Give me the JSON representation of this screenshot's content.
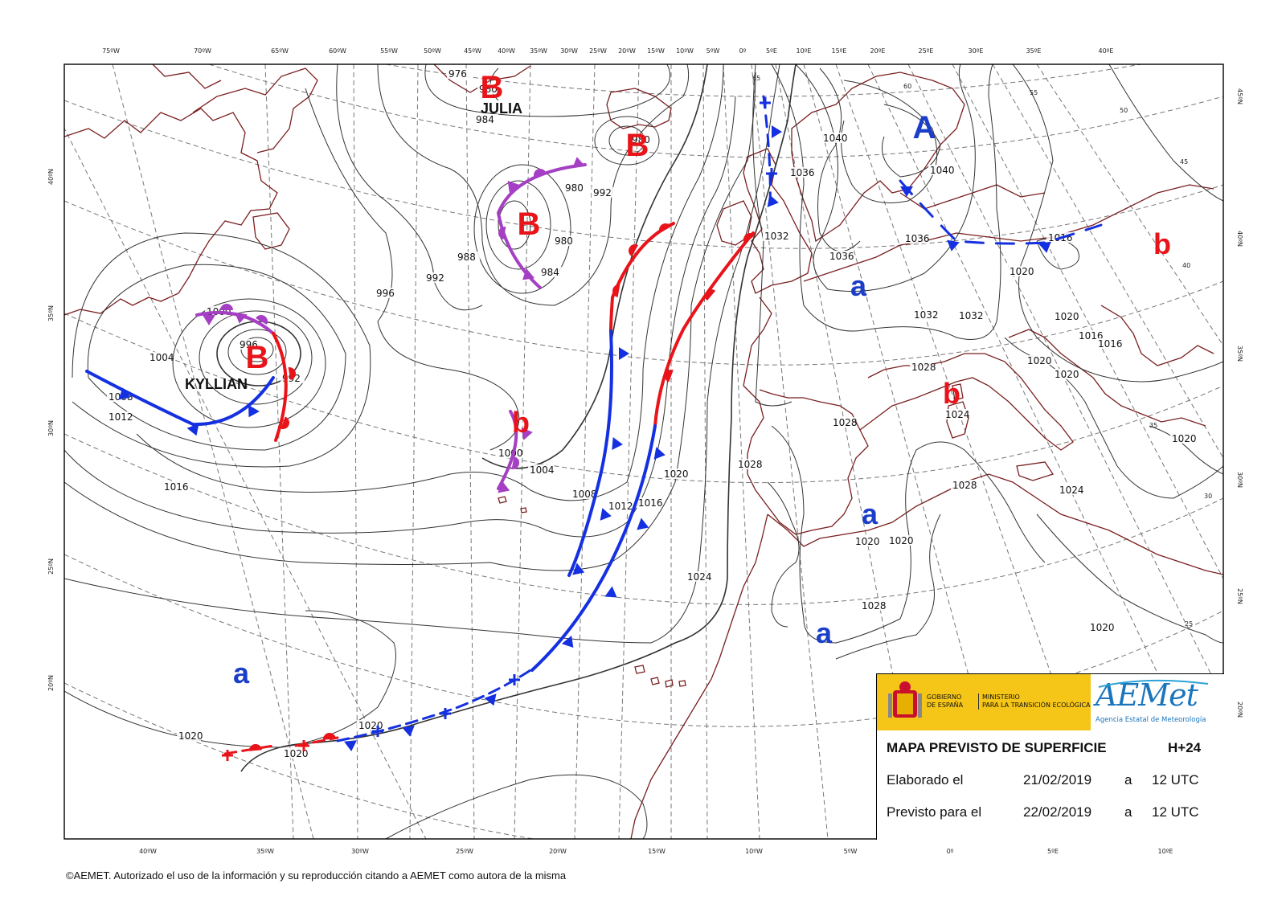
{
  "top_ticks": [
    "75ºW",
    "70ºW",
    "65ºW",
    "60ºW",
    "55ºW",
    "50ºW",
    "45ºW",
    "40ºW",
    "35ºW",
    "30ºW",
    "25ºW",
    "20ºW",
    "15ºW",
    "10ºW",
    "5ºW",
    "0º",
    "5ºE",
    "10ºE",
    "15ºE",
    "20ºE",
    "25ºE",
    "30ºE",
    "35ºE",
    "40ºE"
  ],
  "bottom_ticks": [
    "40ºW",
    "35ºW",
    "30ºW",
    "25ºW",
    "20ºW",
    "15ºW",
    "10ºW",
    "5ºW",
    "0º",
    "5ºE",
    "10ºE"
  ],
  "left_ticks": [
    "40ºN",
    "35ºN",
    "30ºN",
    "25ºN",
    "20ºN"
  ],
  "right_ticks": [
    "45ºN",
    "40ºN",
    "35ºN",
    "30ºN",
    "25ºN",
    "20ºN"
  ],
  "graticule_labels": [
    "65",
    "60",
    "55",
    "50",
    "45",
    "40",
    "35",
    "30",
    "25"
  ],
  "isobar_labels": [
    "976",
    "980",
    "984",
    "980",
    "992",
    "980",
    "988",
    "992",
    "984",
    "980",
    "996",
    "1000",
    "1004",
    "1008",
    "1012",
    "996",
    "1016",
    "992",
    "1000",
    "1004",
    "1008",
    "1012",
    "1016",
    "1020",
    "1024",
    "1028",
    "1028",
    "1028",
    "1028",
    "1032",
    "1036",
    "1036",
    "1040",
    "1040",
    "1036",
    "1032",
    "1032",
    "1028",
    "1024",
    "1016",
    "1020",
    "1020",
    "1020",
    "1016",
    "1016",
    "1020",
    "1024",
    "1020",
    "1020",
    "1020",
    "1020",
    "1020",
    "1020",
    "1020"
  ],
  "pressure_centres": [
    {
      "letter": "B",
      "kind": "low",
      "color": "#e8141a",
      "name": "JULIA"
    },
    {
      "letter": "B",
      "kind": "low",
      "color": "#e8141a",
      "name": ""
    },
    {
      "letter": "B",
      "kind": "low",
      "color": "#e8141a",
      "name": ""
    },
    {
      "letter": "B",
      "kind": "low",
      "color": "#e8141a",
      "name": "KYLLIAN"
    },
    {
      "letter": "b",
      "kind": "low",
      "color": "#e8141a",
      "name": ""
    },
    {
      "letter": "b",
      "kind": "low",
      "color": "#e8141a",
      "name": ""
    },
    {
      "letter": "b",
      "kind": "low",
      "color": "#e8141a",
      "name": ""
    },
    {
      "letter": "A",
      "kind": "high",
      "color": "#1a3ec8",
      "name": ""
    },
    {
      "letter": "a",
      "kind": "high",
      "color": "#1a3ec8",
      "name": ""
    },
    {
      "letter": "a",
      "kind": "high",
      "color": "#1a3ec8",
      "name": ""
    },
    {
      "letter": "a",
      "kind": "high",
      "color": "#1a3ec8",
      "name": ""
    },
    {
      "letter": "a",
      "kind": "high",
      "color": "#1a3ec8",
      "name": ""
    }
  ],
  "colors": {
    "cold_front": "#1430e0",
    "warm_front": "#e8141a",
    "occluded_front": "#a53fc4",
    "coastline": "#7a1f1f",
    "isobar": "#333333",
    "graticule": "#777777",
    "high_letter": "#1a3ec8",
    "low_letter": "#e8141a",
    "logo_strip": "#f5c518"
  },
  "info": {
    "gov_line1": "GOBIERNO",
    "gov_line2": "DE ESPAÑA",
    "min_line1": "MINISTERIO",
    "min_line2": "PARA LA TRANSICIÓN ECOLÓGICA",
    "logo_text": "AEMet",
    "logo_sub": "Agencia Estatal de Meteorología",
    "title": "MAPA PREVISTO DE SUPERFICIE",
    "lead": "H+24",
    "made_label": "Elaborado el",
    "made_date": "21/02/2019",
    "made_a": "a",
    "made_time": "12 UTC",
    "valid_label": "Previsto para el",
    "valid_date": "22/02/2019",
    "valid_a": "a",
    "valid_time": "12 UTC"
  },
  "copyright": "©AEMET. Autorizado el uso de la información y su reproducción citando a AEMET como autora de la misma"
}
